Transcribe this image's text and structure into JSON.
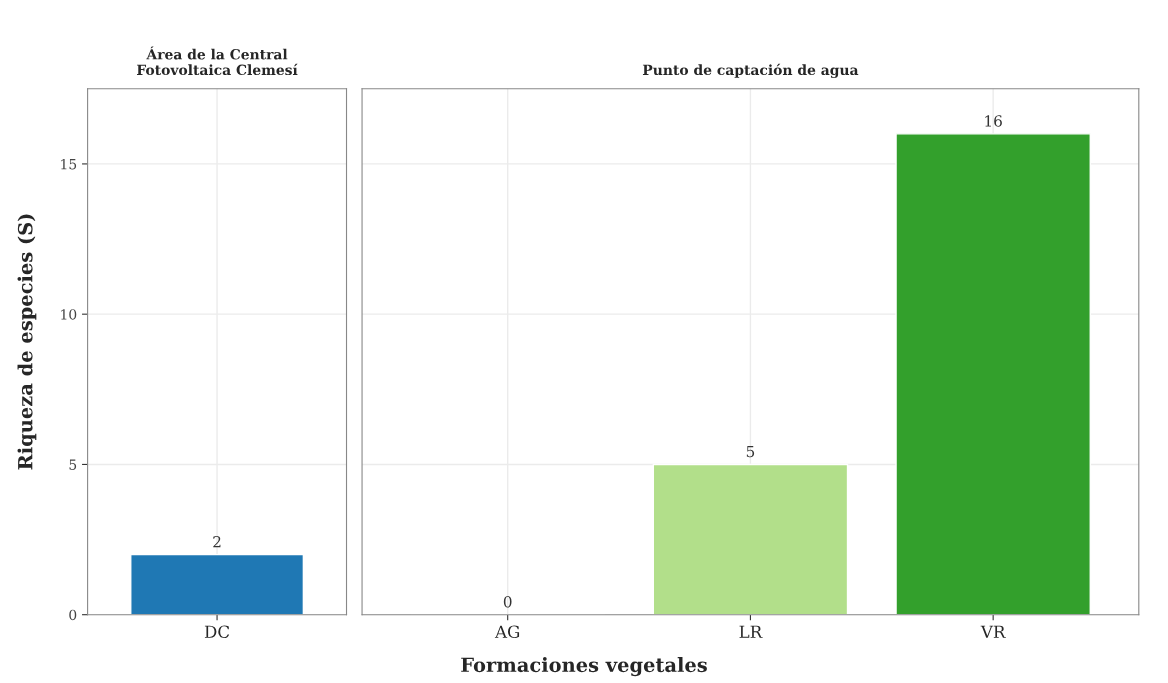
{
  "chart_data": [
    {
      "type": "bar",
      "title": "Área de la Central\nFotovoltaica Clemesí",
      "ylabel": "Riqueza de especies (S)",
      "categories": [
        "DC"
      ],
      "values": [
        2
      ],
      "colors": [
        "#1f78b4"
      ],
      "ylim": [
        0,
        17.5
      ],
      "yticks": [
        0,
        5,
        10,
        15
      ],
      "grid": true,
      "data_labels": true
    },
    {
      "type": "bar",
      "title": "Punto de captación de agua",
      "xlabel": "Formaciones vegetales",
      "categories": [
        "AG",
        "LR",
        "VR"
      ],
      "values": [
        0,
        5,
        16
      ],
      "colors": [
        null,
        "#b2df8a",
        "#33a02c"
      ],
      "ylim": [
        0,
        17.5
      ],
      "yticks": [
        0,
        5,
        10,
        15
      ],
      "grid": true,
      "data_labels": true,
      "tick_labels": "x"
    }
  ]
}
